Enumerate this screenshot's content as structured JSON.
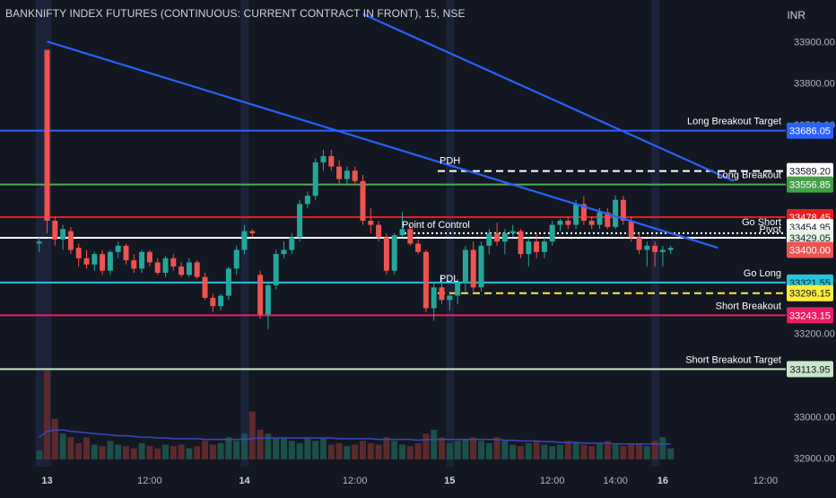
{
  "header": {
    "title": "BANKNIFTY INDEX FUTURES (CONTINUOUS: CURRENT CONTRACT IN FRONT), 15, NSE",
    "currency": "INR"
  },
  "colors": {
    "background": "#131722",
    "up": "#26a69a",
    "down": "#ef5350",
    "trendline": "#2962ff",
    "volume_ma": "#3a47c4",
    "axis_text": "#b2b5be"
  },
  "chart_data": {
    "type": "candlestick",
    "symbol": "BANKNIFTY INDEX FUTURES (CONTINUOUS: CURRENT CONTRACT IN FRONT)",
    "interval": "15",
    "exchange": "NSE",
    "ylim": [
      32880,
      33935
    ],
    "y_ticks": [
      {
        "label": "33900.00",
        "value": 33900
      },
      {
        "label": "33800.00",
        "value": 33800
      },
      {
        "label": "33700.00",
        "value": 33700
      },
      {
        "label": "33200.00",
        "value": 33200
      },
      {
        "label": "33000.00",
        "value": 33000
      },
      {
        "label": "32900.00",
        "value": 32900
      }
    ],
    "x_ticks": [
      {
        "label": "13",
        "bar": 1,
        "bold": true
      },
      {
        "label": "12:00",
        "bar": 14,
        "bold": false
      },
      {
        "label": "14",
        "bar": 26,
        "bold": true
      },
      {
        "label": "12:00",
        "bar": 40,
        "bold": false
      },
      {
        "label": "15",
        "bar": 52,
        "bold": true
      },
      {
        "label": "12:00",
        "bar": 65,
        "bold": false
      },
      {
        "label": "14:00",
        "bar": 73,
        "bold": false
      },
      {
        "label": "16",
        "bar": 79,
        "bold": true
      },
      {
        "label": "12:00",
        "bar": 92,
        "bold": false
      }
    ],
    "levels": [
      {
        "name": "Long Breakout Target",
        "value": 33686.05,
        "price_label": "33686.05",
        "color": "#2962ff",
        "label_bg": "#2962ff",
        "label_fg": "#ffffff",
        "style": "solid",
        "width": 2
      },
      {
        "name": "PDH",
        "value": 33589.2,
        "price_label": "33589.20",
        "color": "#ffffff",
        "label_bg": "#ffffff",
        "label_fg": "#131722",
        "style": "dashed",
        "width": 2
      },
      {
        "name": "Long Breakout",
        "value": 33556.85,
        "price_label": "33556.85",
        "color": "#4caf50",
        "label_bg": "#43a047",
        "label_fg": "#ffffff",
        "style": "solid",
        "width": 2
      },
      {
        "name": "Go Short",
        "value": 33478.45,
        "price_label": "33478.45",
        "color": "#e91c1c",
        "label_bg": "#e91c1c",
        "label_fg": "#ffffff",
        "style": "solid",
        "width": 2
      },
      {
        "name": "",
        "value": 33454.95,
        "price_label": "33454.95",
        "color": "#ffffff",
        "label_bg": "#ffffff",
        "label_fg": "#131722",
        "style": "none",
        "width": 0
      },
      {
        "name": "Point of Control",
        "value": 33440.0,
        "price_label": "",
        "color": "#ffffff",
        "label_bg": "",
        "label_fg": "",
        "style": "dotted",
        "width": 2
      },
      {
        "name": "Pivot",
        "value": 33429.05,
        "price_label": "33429.05",
        "color": "#ffffff",
        "label_bg": "#e8f5e9",
        "label_fg": "#131722",
        "style": "solid",
        "width": 2
      },
      {
        "name": "",
        "value": 33400.0,
        "price_label": "33400.00",
        "color": "#ef5350",
        "label_bg": "#ef5350",
        "label_fg": "#ffffff",
        "style": "none",
        "width": 0
      },
      {
        "name": "Go Long",
        "value": 33321.55,
        "price_label": "33321.55",
        "color": "#26c6da",
        "label_bg": "#26c6da",
        "label_fg": "#131722",
        "style": "solid",
        "width": 2
      },
      {
        "name": "PDL",
        "value": 33296.15,
        "price_label": "33296.15",
        "color": "#ffeb3b",
        "label_bg": "#ffeb3b",
        "label_fg": "#131722",
        "style": "dashed",
        "width": 2
      },
      {
        "name": "Short Breakout",
        "value": 33243.15,
        "price_label": "33243.15",
        "color": "#e91e63",
        "label_bg": "#e91e63",
        "label_fg": "#ffffff",
        "style": "solid",
        "width": 2
      },
      {
        "name": "Short Breakout Target",
        "value": 33113.95,
        "price_label": "33113.95",
        "color": "#c8e6c9",
        "label_bg": "#c8e6c9",
        "label_fg": "#131722",
        "style": "solid",
        "width": 2
      }
    ],
    "trendlines": [
      {
        "from": {
          "bar": 1,
          "price": 33900
        },
        "to": {
          "bar": 86,
          "price": 33405
        }
      },
      {
        "from": {
          "bar": 41,
          "price": 33966
        },
        "to": {
          "bar": 88,
          "price": 33565
        }
      }
    ],
    "session_highlight_bars": [
      0,
      1,
      26,
      52,
      78
    ],
    "candles": [
      {
        "o": 33415,
        "h": 33430,
        "l": 33395,
        "c": 33420
      },
      {
        "o": 33880,
        "h": 33880,
        "l": 33440,
        "c": 33470
      },
      {
        "o": 33470,
        "h": 33480,
        "l": 33410,
        "c": 33425
      },
      {
        "o": 33425,
        "h": 33460,
        "l": 33400,
        "c": 33450
      },
      {
        "o": 33445,
        "h": 33455,
        "l": 33390,
        "c": 33400
      },
      {
        "o": 33405,
        "h": 33415,
        "l": 33360,
        "c": 33380
      },
      {
        "o": 33380,
        "h": 33400,
        "l": 33355,
        "c": 33365
      },
      {
        "o": 33365,
        "h": 33395,
        "l": 33350,
        "c": 33390
      },
      {
        "o": 33390,
        "h": 33400,
        "l": 33340,
        "c": 33350
      },
      {
        "o": 33350,
        "h": 33400,
        "l": 33340,
        "c": 33395
      },
      {
        "o": 33395,
        "h": 33420,
        "l": 33380,
        "c": 33410
      },
      {
        "o": 33410,
        "h": 33415,
        "l": 33365,
        "c": 33375
      },
      {
        "o": 33375,
        "h": 33390,
        "l": 33345,
        "c": 33355
      },
      {
        "o": 33355,
        "h": 33400,
        "l": 33345,
        "c": 33395
      },
      {
        "o": 33395,
        "h": 33400,
        "l": 33360,
        "c": 33370
      },
      {
        "o": 33370,
        "h": 33380,
        "l": 33340,
        "c": 33345
      },
      {
        "o": 33345,
        "h": 33385,
        "l": 33335,
        "c": 33380
      },
      {
        "o": 33380,
        "h": 33390,
        "l": 33350,
        "c": 33360
      },
      {
        "o": 33360,
        "h": 33370,
        "l": 33335,
        "c": 33340
      },
      {
        "o": 33340,
        "h": 33380,
        "l": 33335,
        "c": 33370
      },
      {
        "o": 33370,
        "h": 33375,
        "l": 33330,
        "c": 33335
      },
      {
        "o": 33335,
        "h": 33345,
        "l": 33280,
        "c": 33285
      },
      {
        "o": 33285,
        "h": 33295,
        "l": 33250,
        "c": 33265
      },
      {
        "o": 33265,
        "h": 33295,
        "l": 33255,
        "c": 33290
      },
      {
        "o": 33290,
        "h": 33360,
        "l": 33280,
        "c": 33355
      },
      {
        "o": 33355,
        "h": 33410,
        "l": 33340,
        "c": 33400
      },
      {
        "o": 33400,
        "h": 33460,
        "l": 33390,
        "c": 33445
      },
      {
        "o": 33445,
        "h": 33450,
        "l": 33430,
        "c": 33440
      },
      {
        "o": 33340,
        "h": 33350,
        "l": 33235,
        "c": 33245
      },
      {
        "o": 33245,
        "h": 33320,
        "l": 33210,
        "c": 33315
      },
      {
        "o": 33315,
        "h": 33400,
        "l": 33305,
        "c": 33390
      },
      {
        "o": 33390,
        "h": 33420,
        "l": 33380,
        "c": 33400
      },
      {
        "o": 33400,
        "h": 33440,
        "l": 33390,
        "c": 33430
      },
      {
        "o": 33430,
        "h": 33520,
        "l": 33420,
        "c": 33510
      },
      {
        "o": 33510,
        "h": 33540,
        "l": 33500,
        "c": 33530
      },
      {
        "o": 33530,
        "h": 33620,
        "l": 33520,
        "c": 33610
      },
      {
        "o": 33610,
        "h": 33640,
        "l": 33590,
        "c": 33625
      },
      {
        "o": 33625,
        "h": 33640,
        "l": 33590,
        "c": 33600
      },
      {
        "o": 33600,
        "h": 33615,
        "l": 33560,
        "c": 33570
      },
      {
        "o": 33570,
        "h": 33600,
        "l": 33555,
        "c": 33590
      },
      {
        "o": 33590,
        "h": 33600,
        "l": 33560,
        "c": 33565
      },
      {
        "o": 33565,
        "h": 33580,
        "l": 33460,
        "c": 33470
      },
      {
        "o": 33470,
        "h": 33500,
        "l": 33440,
        "c": 33460
      },
      {
        "o": 33460,
        "h": 33470,
        "l": 33420,
        "c": 33430
      },
      {
        "o": 33430,
        "h": 33440,
        "l": 33340,
        "c": 33350
      },
      {
        "o": 33350,
        "h": 33440,
        "l": 33340,
        "c": 33435
      },
      {
        "o": 33435,
        "h": 33490,
        "l": 33430,
        "c": 33450
      },
      {
        "o": 33450,
        "h": 33460,
        "l": 33410,
        "c": 33415
      },
      {
        "o": 33415,
        "h": 33425,
        "l": 33390,
        "c": 33395
      },
      {
        "o": 33395,
        "h": 33400,
        "l": 33250,
        "c": 33260
      },
      {
        "o": 33260,
        "h": 33320,
        "l": 33230,
        "c": 33310
      },
      {
        "o": 33310,
        "h": 33340,
        "l": 33270,
        "c": 33280
      },
      {
        "o": 33280,
        "h": 33300,
        "l": 33255,
        "c": 33290
      },
      {
        "o": 33290,
        "h": 33330,
        "l": 33270,
        "c": 33320
      },
      {
        "o": 33320,
        "h": 33410,
        "l": 33300,
        "c": 33400
      },
      {
        "o": 33400,
        "h": 33420,
        "l": 33300,
        "c": 33310
      },
      {
        "o": 33310,
        "h": 33420,
        "l": 33300,
        "c": 33410
      },
      {
        "o": 33410,
        "h": 33450,
        "l": 33390,
        "c": 33440
      },
      {
        "o": 33440,
        "h": 33465,
        "l": 33410,
        "c": 33420
      },
      {
        "o": 33420,
        "h": 33450,
        "l": 33390,
        "c": 33440
      },
      {
        "o": 33440,
        "h": 33460,
        "l": 33430,
        "c": 33445
      },
      {
        "o": 33445,
        "h": 33450,
        "l": 33380,
        "c": 33390
      },
      {
        "o": 33390,
        "h": 33430,
        "l": 33360,
        "c": 33420
      },
      {
        "o": 33420,
        "h": 33440,
        "l": 33380,
        "c": 33395
      },
      {
        "o": 33395,
        "h": 33430,
        "l": 33380,
        "c": 33420
      },
      {
        "o": 33420,
        "h": 33470,
        "l": 33410,
        "c": 33460
      },
      {
        "o": 33460,
        "h": 33475,
        "l": 33445,
        "c": 33470
      },
      {
        "o": 33470,
        "h": 33480,
        "l": 33450,
        "c": 33460
      },
      {
        "o": 33460,
        "h": 33520,
        "l": 33450,
        "c": 33510
      },
      {
        "o": 33510,
        "h": 33530,
        "l": 33460,
        "c": 33470
      },
      {
        "o": 33470,
        "h": 33480,
        "l": 33450,
        "c": 33460
      },
      {
        "o": 33460,
        "h": 33500,
        "l": 33450,
        "c": 33490
      },
      {
        "o": 33490,
        "h": 33500,
        "l": 33450,
        "c": 33455
      },
      {
        "o": 33455,
        "h": 33530,
        "l": 33450,
        "c": 33520
      },
      {
        "o": 33520,
        "h": 33530,
        "l": 33460,
        "c": 33470
      },
      {
        "o": 33470,
        "h": 33480,
        "l": 33420,
        "c": 33430
      },
      {
        "o": 33430,
        "h": 33440,
        "l": 33390,
        "c": 33400
      },
      {
        "o": 33400,
        "h": 33420,
        "l": 33360,
        "c": 33410
      },
      {
        "o": 33410,
        "h": 33420,
        "l": 33360,
        "c": 33395
      },
      {
        "o": 33395,
        "h": 33410,
        "l": 33360,
        "c": 33400
      },
      {
        "o": 33400,
        "h": 33410,
        "l": 33390,
        "c": 33405
      }
    ],
    "volume": {
      "ylim": [
        0,
        170
      ],
      "values": [
        12,
        120,
        55,
        35,
        30,
        22,
        30,
        20,
        18,
        25,
        20,
        18,
        15,
        22,
        18,
        15,
        20,
        18,
        20,
        15,
        18,
        25,
        20,
        22,
        30,
        25,
        35,
        65,
        40,
        35,
        28,
        30,
        25,
        22,
        30,
        25,
        28,
        20,
        22,
        18,
        20,
        25,
        22,
        20,
        30,
        25,
        20,
        18,
        22,
        35,
        40,
        30,
        22,
        25,
        28,
        30,
        25,
        22,
        30,
        25,
        20,
        18,
        22,
        25,
        20,
        18,
        20,
        25,
        22,
        20,
        18,
        22,
        25,
        20,
        18,
        20,
        22,
        18,
        25,
        30,
        15
      ],
      "ma": [
        30,
        38,
        40,
        40,
        38,
        37,
        36,
        35,
        34,
        33,
        32,
        32,
        31,
        30,
        30,
        29,
        29,
        28,
        28,
        28,
        28,
        27,
        27,
        27,
        27,
        27,
        27,
        28,
        29,
        29,
        29,
        29,
        29,
        29,
        29,
        29,
        29,
        29,
        28,
        28,
        28,
        28,
        28,
        27,
        27,
        27,
        27,
        27,
        26,
        27,
        27,
        27,
        27,
        27,
        27,
        27,
        27,
        27,
        27,
        26,
        26,
        25,
        25,
        25,
        24,
        24,
        23,
        23,
        23,
        22,
        22,
        22,
        22,
        21,
        21,
        21,
        21,
        21,
        21,
        21,
        21
      ]
    }
  }
}
